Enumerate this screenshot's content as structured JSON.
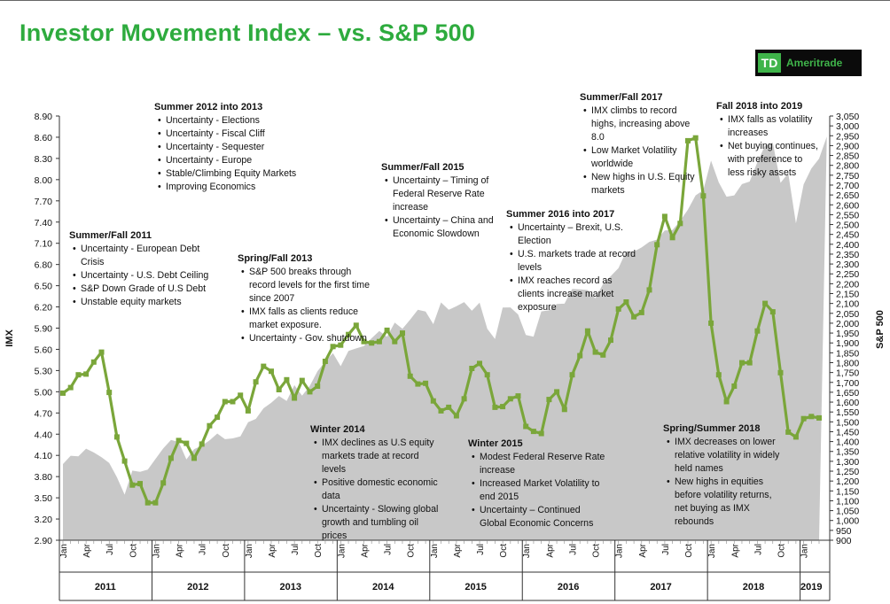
{
  "title": "Investor Movement Index – vs. S&P 500",
  "logo": {
    "mark": "TD",
    "word": "Ameritrade"
  },
  "chart_data": {
    "type": "line",
    "ylabel": "IMX",
    "y2label": "S&P 500",
    "ylim": [
      2.9,
      8.9
    ],
    "y2lim": [
      900,
      3050
    ],
    "yticks": [
      "8.90",
      "8.60",
      "8.30",
      "8.00",
      "7.70",
      "7.40",
      "7.10",
      "6.80",
      "6.50",
      "6.20",
      "5.90",
      "5.60",
      "5.30",
      "5.00",
      "4.70",
      "4.40",
      "4.10",
      "3.80",
      "3.50",
      "3.20",
      "2.90"
    ],
    "y2ticks": [
      "3,050",
      "3,000",
      "2,950",
      "2,900",
      "2,850",
      "2,800",
      "2,750",
      "2,700",
      "2,650",
      "2,600",
      "2,550",
      "2,500",
      "2,450",
      "2,400",
      "2,350",
      "2,300",
      "2,250",
      "2,200",
      "2,150",
      "2,100",
      "2,050",
      "2,000",
      "1,950",
      "1,900",
      "1,850",
      "1,800",
      "1,750",
      "1,700",
      "1,650",
      "1,600",
      "1,550",
      "1,500",
      "1,450",
      "1,400",
      "1,350",
      "1,300",
      "1,250",
      "1,200",
      "1,150",
      "1,100",
      "1,050",
      "1,000",
      "950",
      "900"
    ],
    "month_labels": [
      "Jan",
      "Apr",
      "Jul",
      "Oct"
    ],
    "years": [
      "2011",
      "2012",
      "2013",
      "2014",
      "2015",
      "2016",
      "2017",
      "2018",
      "2019"
    ],
    "series": [
      {
        "name": "IMX",
        "values": [
          4.98,
          5.06,
          5.24,
          5.25,
          5.42,
          5.56,
          4.99,
          4.36,
          4.02,
          3.68,
          3.7,
          3.43,
          3.43,
          3.71,
          4.06,
          4.31,
          4.27,
          4.06,
          4.26,
          4.52,
          4.64,
          4.86,
          4.86,
          4.95,
          4.73,
          5.14,
          5.36,
          5.29,
          5.03,
          5.17,
          4.91,
          5.16,
          5.0,
          5.08,
          5.43,
          5.64,
          5.66,
          5.81,
          5.94,
          5.71,
          5.69,
          5.71,
          5.87,
          5.71,
          5.83,
          5.22,
          5.11,
          5.12,
          4.87,
          4.73,
          4.78,
          4.66,
          4.9,
          5.33,
          5.4,
          5.24,
          4.78,
          4.79,
          4.9,
          4.94,
          4.51,
          4.44,
          4.41,
          4.89,
          5.0,
          4.75,
          5.24,
          5.51,
          5.86,
          5.56,
          5.52,
          5.73,
          6.17,
          6.27,
          6.06,
          6.12,
          6.44,
          7.08,
          7.48,
          7.18,
          7.38,
          8.55,
          8.59,
          7.77,
          5.97,
          5.24,
          4.86,
          5.08,
          5.41,
          5.41,
          5.86,
          6.25,
          6.13,
          5.27,
          4.43,
          4.36,
          4.62,
          4.65,
          4.63
        ]
      },
      {
        "name": "S&P 500",
        "values": [
          1286,
          1328,
          1325,
          1364,
          1345,
          1321,
          1292,
          1219,
          1131,
          1253,
          1247,
          1258,
          1312,
          1366,
          1408,
          1398,
          1310,
          1362,
          1379,
          1406,
          1441,
          1412,
          1416,
          1426,
          1498,
          1515,
          1569,
          1597,
          1631,
          1606,
          1686,
          1633,
          1682,
          1757,
          1806,
          1848,
          1782,
          1859,
          1872,
          1884,
          1924,
          1960,
          1931,
          2003,
          1972,
          2018,
          2068,
          2059,
          1995,
          2105,
          2068,
          2086,
          2107,
          2063,
          2104,
          1972,
          1920,
          2079,
          2080,
          2044,
          1940,
          1932,
          2060,
          2065,
          2097,
          2099,
          2174,
          2171,
          2168,
          2126,
          2199,
          2239,
          2279,
          2364,
          2363,
          2384,
          2412,
          2424,
          2470,
          2472,
          2519,
          2575,
          2648,
          2674,
          2824,
          2714,
          2641,
          2648,
          2705,
          2718,
          2816,
          2901,
          2914,
          2711,
          2760,
          2506,
          2704,
          2784,
          2834,
          2946
        ]
      }
    ]
  },
  "annotations": [
    {
      "heading": "Summer/Fall 2011",
      "items": [
        "Uncertainty - European Debt Crisis",
        "Uncertainty - U.S. Debt Ceiling",
        "S&P Down Grade of U.S Debt",
        "Unstable equity markets"
      ]
    },
    {
      "heading": "Summer 2012 into 2013",
      "items": [
        "Uncertainty - Elections",
        "Uncertainty - Fiscal Cliff",
        "Uncertainty - Sequester",
        "Uncertainty - Europe",
        "Stable/Climbing Equity Markets",
        "Improving Economics"
      ]
    },
    {
      "heading": "Spring/Fall 2013",
      "items": [
        "S&P 500 breaks through record levels for the first time since 2007",
        "IMX falls as clients reduce market exposure.",
        "Uncertainty - Gov. shutdown"
      ]
    },
    {
      "heading": "Summer/Fall 2015",
      "items": [
        "Uncertainty – Timing of Federal Reserve Rate increase",
        "Uncertainty – China and Economic Slowdown"
      ]
    },
    {
      "heading": "Summer 2016 into 2017",
      "items": [
        "Uncertainty – Brexit, U.S. Election",
        "U.S. markets trade at record levels",
        "IMX reaches record as clients increase market exposure"
      ]
    },
    {
      "heading": "Summer/Fall 2017",
      "items": [
        "IMX climbs to record highs, increasing above 8.0",
        "Low Market Volatility worldwide",
        "New highs in U.S. Equity markets"
      ]
    },
    {
      "heading": "Fall 2018 into 2019",
      "items": [
        "IMX falls as volatility increases",
        "Net buying continues, with preference to less risky assets"
      ]
    },
    {
      "heading": "Winter 2014",
      "items": [
        "IMX declines as U.S equity markets trade at record levels",
        "Positive domestic economic data",
        "Uncertainty - Slowing global growth and tumbling oil prices"
      ]
    },
    {
      "heading": "Winter 2015",
      "items": [
        "Modest Federal Reserve Rate increase",
        "Increased Market Volatility to end 2015",
        "Uncertainty – Continued Global Economic Concerns"
      ]
    },
    {
      "heading": "Spring/Summer 2018",
      "items": [
        "IMX decreases on lower relative volatility in widely held names",
        "New highs in equities before volatility returns, net buying as IMX rebounds"
      ]
    }
  ],
  "colors": {
    "title": "#2eab3e",
    "imx_line": "#7aa63a",
    "sp_area": "#c8c8c8",
    "logo_green": "#3fb44a"
  }
}
